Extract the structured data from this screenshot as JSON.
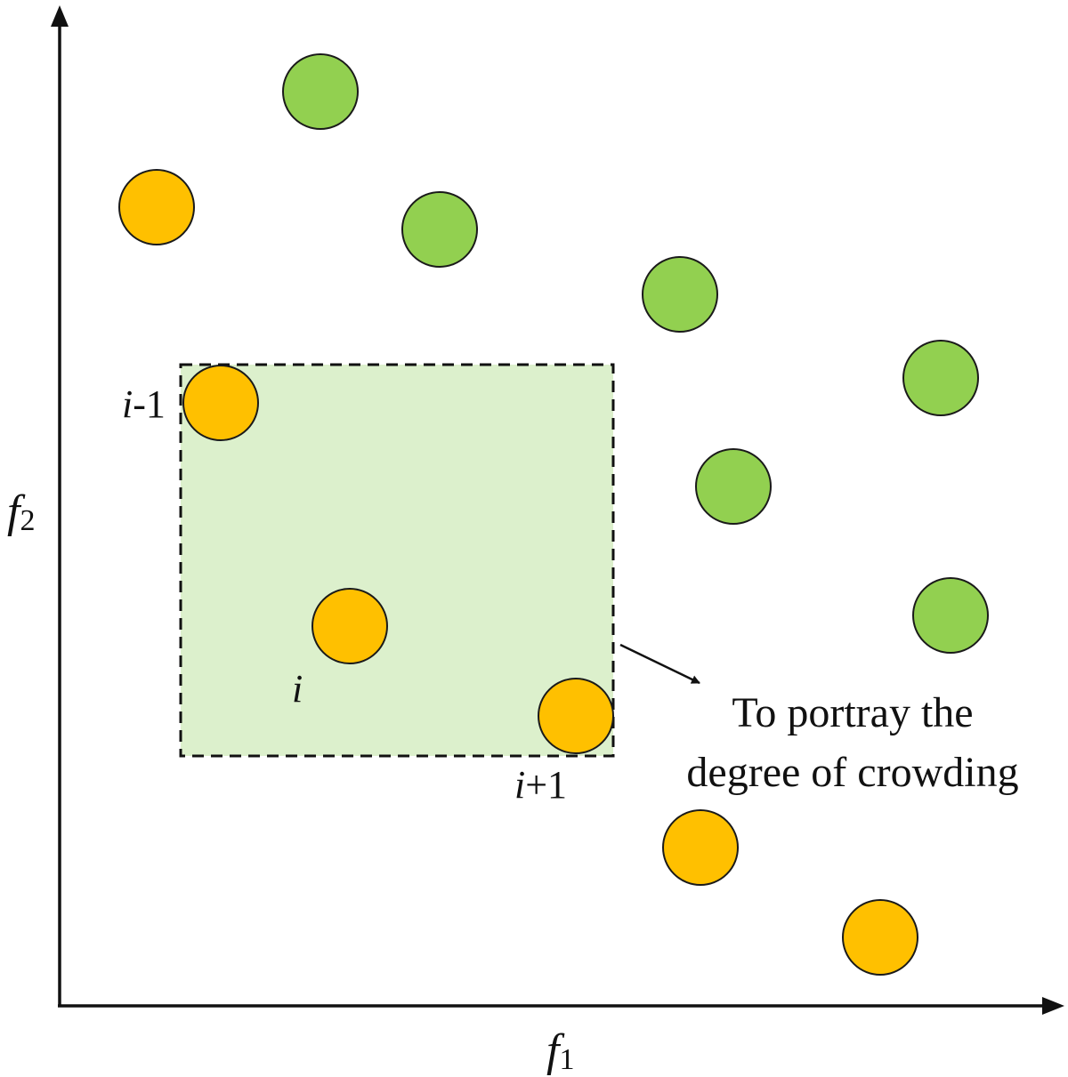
{
  "axes": {
    "x_label_symbol": "f",
    "x_label_sub": "1",
    "y_label_symbol": "f",
    "y_label_sub": "2"
  },
  "point_labels": {
    "prev": {
      "var": "i",
      "suffix": "-1"
    },
    "current": {
      "var": "i",
      "suffix": ""
    },
    "next": {
      "var": "i",
      "suffix": "+1"
    }
  },
  "annotation": {
    "line1": "To portray the",
    "line2": "degree of crowding"
  },
  "colors": {
    "front_point": "#ffc000",
    "other_point": "#92d050",
    "crowding_box_fill": "#dcf0cc",
    "stroke": "#1a1a1a"
  }
}
